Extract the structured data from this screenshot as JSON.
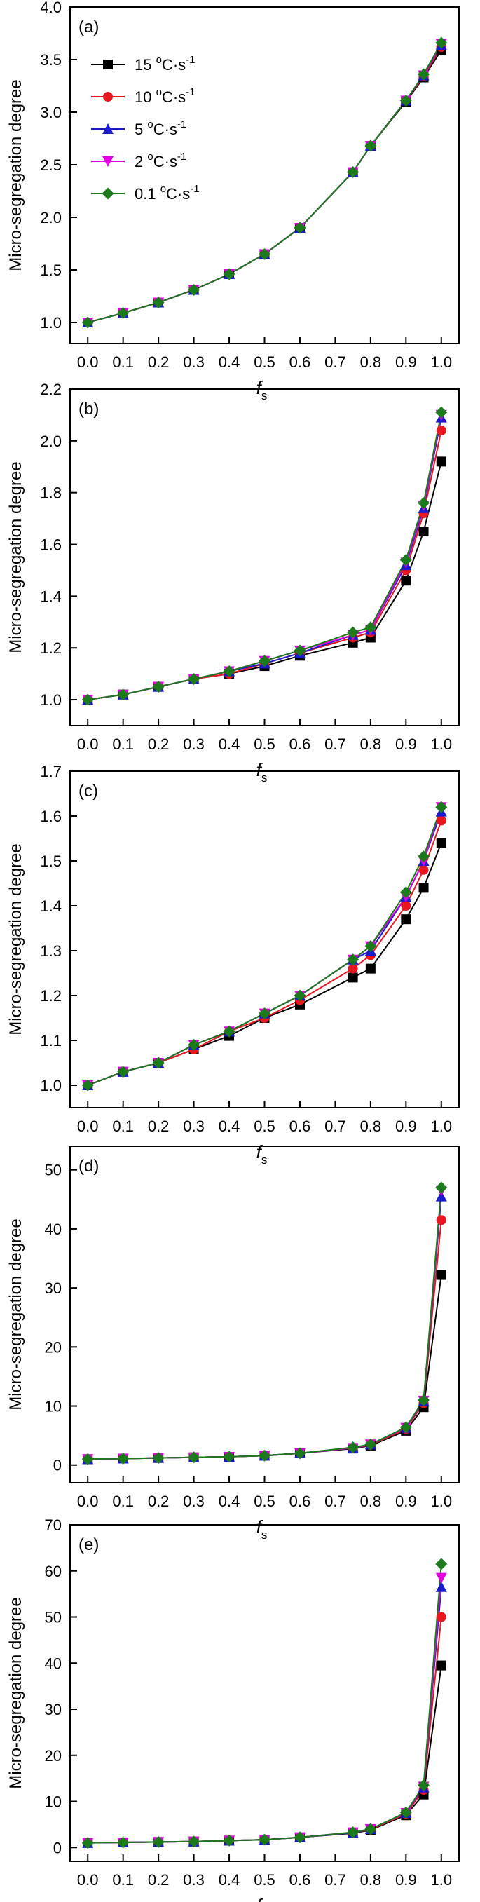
{
  "figure": {
    "ylabel": "Micro-segregation degree",
    "xlabel_main": "f",
    "xlabel_sub": "s"
  },
  "legend": {
    "placement": "top-left",
    "entries": [
      {
        "number": "15",
        "unit_deg": "o",
        "unit_main": "C·s",
        "unit_exp": "-1",
        "color": "#000000",
        "marker": "square"
      },
      {
        "number": "10",
        "unit_deg": "o",
        "unit_main": "C·s",
        "unit_exp": "-1",
        "color": "#e8171f",
        "marker": "circle"
      },
      {
        "number": "5",
        "unit_deg": "o",
        "unit_main": "C·s",
        "unit_exp": "-1",
        "color": "#1a1acd",
        "marker": "triangle-up"
      },
      {
        "number": "2",
        "unit_deg": "o",
        "unit_main": "C·s",
        "unit_exp": "-1",
        "color": "#e000e0",
        "marker": "triangle-down"
      },
      {
        "number": "0.1",
        "unit_deg": "o",
        "unit_main": "C·s",
        "unit_exp": "-1",
        "color": "#1b7a1b",
        "marker": "diamond"
      }
    ]
  },
  "chart_data": [
    {
      "type": "line",
      "panel_label": "(a)",
      "ylim": [
        0.8,
        4.0
      ],
      "y_ticks": [
        "1.0",
        "1.5",
        "2.0",
        "2.5",
        "3.0",
        "3.5",
        "4.0"
      ],
      "xlim": [
        -0.05,
        1.05
      ],
      "x_ticks": [
        "0.0",
        "0.1",
        "0.2",
        "0.3",
        "0.4",
        "0.5",
        "0.6",
        "0.7",
        "0.8",
        "0.9",
        "1.0"
      ],
      "x": [
        0,
        0.1,
        0.2,
        0.3,
        0.4,
        0.5,
        0.6,
        0.75,
        0.8,
        0.9,
        0.95,
        1.0
      ],
      "series": [
        {
          "name": "15 °C·s-1",
          "values": [
            1.0,
            1.09,
            1.19,
            1.31,
            1.46,
            1.65,
            1.9,
            2.43,
            2.68,
            3.1,
            3.33,
            3.59
          ]
        },
        {
          "name": "10 °C·s-1",
          "values": [
            1.0,
            1.09,
            1.19,
            1.31,
            1.46,
            1.65,
            1.9,
            2.43,
            2.68,
            3.11,
            3.34,
            3.62
          ]
        },
        {
          "name": "5 °C·s-1",
          "values": [
            1.0,
            1.09,
            1.19,
            1.31,
            1.46,
            1.65,
            1.9,
            2.43,
            2.68,
            3.11,
            3.35,
            3.64
          ]
        },
        {
          "name": "2 °C·s-1",
          "values": [
            1.0,
            1.09,
            1.19,
            1.31,
            1.46,
            1.65,
            1.9,
            2.43,
            2.68,
            3.11,
            3.35,
            3.65
          ]
        },
        {
          "name": "0.1 °C·s-1",
          "values": [
            1.0,
            1.09,
            1.19,
            1.31,
            1.46,
            1.65,
            1.9,
            2.43,
            2.68,
            3.11,
            3.36,
            3.66
          ]
        }
      ]
    },
    {
      "type": "line",
      "panel_label": "(b)",
      "ylim": [
        0.9,
        2.2
      ],
      "y_ticks": [
        "1.0",
        "1.2",
        "1.4",
        "1.6",
        "1.8",
        "2.0",
        "2.2"
      ],
      "xlim": [
        -0.05,
        1.05
      ],
      "x_ticks": [
        "0.0",
        "0.1",
        "0.2",
        "0.3",
        "0.4",
        "0.5",
        "0.6",
        "0.7",
        "0.8",
        "0.9",
        "1.0"
      ],
      "x": [
        0,
        0.1,
        0.2,
        0.3,
        0.4,
        0.5,
        0.6,
        0.75,
        0.8,
        0.9,
        0.95,
        1.0
      ],
      "series": [
        {
          "name": "15 °C·s-1",
          "values": [
            1.0,
            1.02,
            1.05,
            1.08,
            1.1,
            1.13,
            1.17,
            1.22,
            1.24,
            1.46,
            1.65,
            1.92
          ]
        },
        {
          "name": "10 °C·s-1",
          "values": [
            1.0,
            1.02,
            1.05,
            1.08,
            1.1,
            1.14,
            1.18,
            1.24,
            1.26,
            1.5,
            1.72,
            2.04
          ]
        },
        {
          "name": "5 °C·s-1",
          "values": [
            1.0,
            1.02,
            1.05,
            1.08,
            1.11,
            1.14,
            1.18,
            1.25,
            1.27,
            1.52,
            1.74,
            2.09
          ]
        },
        {
          "name": "2 °C·s-1",
          "values": [
            1.0,
            1.02,
            1.05,
            1.08,
            1.11,
            1.15,
            1.19,
            1.25,
            1.27,
            1.53,
            1.75,
            2.1
          ]
        },
        {
          "name": "0.1 °C·s-1",
          "values": [
            1.0,
            1.02,
            1.05,
            1.08,
            1.11,
            1.15,
            1.19,
            1.26,
            1.28,
            1.54,
            1.76,
            2.11
          ]
        }
      ]
    },
    {
      "type": "line",
      "panel_label": "(c)",
      "ylim": [
        0.95,
        1.7
      ],
      "y_ticks": [
        "1.0",
        "1.1",
        "1.2",
        "1.3",
        "1.4",
        "1.5",
        "1.6",
        "1.7"
      ],
      "xlim": [
        -0.05,
        1.05
      ],
      "x_ticks": [
        "0.0",
        "0.1",
        "0.2",
        "0.3",
        "0.4",
        "0.5",
        "0.6",
        "0.7",
        "0.8",
        "0.9",
        "1.0"
      ],
      "x": [
        0,
        0.1,
        0.2,
        0.3,
        0.4,
        0.5,
        0.6,
        0.75,
        0.8,
        0.9,
        0.95,
        1.0
      ],
      "series": [
        {
          "name": "15 °C·s-1",
          "values": [
            1.0,
            1.03,
            1.05,
            1.08,
            1.11,
            1.15,
            1.18,
            1.24,
            1.26,
            1.37,
            1.44,
            1.54
          ]
        },
        {
          "name": "10 °C·s-1",
          "values": [
            1.0,
            1.03,
            1.05,
            1.08,
            1.12,
            1.15,
            1.19,
            1.26,
            1.29,
            1.4,
            1.48,
            1.59
          ]
        },
        {
          "name": "5 °C·s-1",
          "values": [
            1.0,
            1.03,
            1.05,
            1.09,
            1.12,
            1.16,
            1.2,
            1.28,
            1.3,
            1.42,
            1.5,
            1.61
          ]
        },
        {
          "name": "2 °C·s-1",
          "values": [
            1.0,
            1.03,
            1.05,
            1.09,
            1.12,
            1.16,
            1.2,
            1.28,
            1.31,
            1.42,
            1.5,
            1.62
          ]
        },
        {
          "name": "0.1 °C·s-1",
          "values": [
            1.0,
            1.03,
            1.05,
            1.09,
            1.12,
            1.16,
            1.2,
            1.28,
            1.31,
            1.43,
            1.51,
            1.62
          ]
        }
      ]
    },
    {
      "type": "line",
      "panel_label": "(d)",
      "ylim": [
        -3,
        54
      ],
      "y_ticks": [
        "0",
        "10",
        "20",
        "30",
        "40",
        "50"
      ],
      "xlim": [
        -0.05,
        1.05
      ],
      "x_ticks": [
        "0.0",
        "0.1",
        "0.2",
        "0.3",
        "0.4",
        "0.5",
        "0.6",
        "0.7",
        "0.8",
        "0.9",
        "1.0"
      ],
      "x": [
        0,
        0.1,
        0.2,
        0.3,
        0.4,
        0.5,
        0.6,
        0.75,
        0.8,
        0.9,
        0.95,
        1.0
      ],
      "series": [
        {
          "name": "15 °C·s-1",
          "values": [
            1.0,
            1.1,
            1.2,
            1.3,
            1.4,
            1.6,
            2.0,
            2.8,
            3.3,
            5.8,
            9.8,
            32.2
          ]
        },
        {
          "name": "10 °C·s-1",
          "values": [
            1.0,
            1.1,
            1.2,
            1.3,
            1.4,
            1.6,
            2.0,
            2.9,
            3.4,
            6.1,
            10.5,
            41.5
          ]
        },
        {
          "name": "5 °C·s-1",
          "values": [
            1.0,
            1.1,
            1.2,
            1.3,
            1.4,
            1.6,
            2.0,
            2.9,
            3.5,
            6.3,
            10.8,
            45.5
          ]
        },
        {
          "name": "2 °C·s-1",
          "values": [
            1.0,
            1.1,
            1.2,
            1.3,
            1.4,
            1.6,
            2.0,
            2.9,
            3.5,
            6.3,
            10.9,
            46.5
          ]
        },
        {
          "name": "0.1 °C·s-1",
          "values": [
            1.0,
            1.1,
            1.2,
            1.3,
            1.4,
            1.6,
            2.0,
            3.0,
            3.5,
            6.4,
            11.0,
            47.0
          ]
        }
      ]
    },
    {
      "type": "line",
      "panel_label": "(e)",
      "ylim": [
        -3,
        70
      ],
      "y_ticks": [
        "0",
        "10",
        "20",
        "30",
        "40",
        "50",
        "60",
        "70"
      ],
      "xlim": [
        -0.05,
        1.05
      ],
      "x_ticks": [
        "0.0",
        "0.1",
        "0.2",
        "0.3",
        "0.4",
        "0.5",
        "0.6",
        "0.7",
        "0.8",
        "0.9",
        "1.0"
      ],
      "x": [
        0,
        0.1,
        0.2,
        0.3,
        0.4,
        0.5,
        0.6,
        0.75,
        0.8,
        0.9,
        0.95,
        1.0
      ],
      "series": [
        {
          "name": "15 °C·s-1",
          "values": [
            1.0,
            1.1,
            1.2,
            1.3,
            1.5,
            1.7,
            2.2,
            3.1,
            3.8,
            7.0,
            11.5,
            39.5
          ]
        },
        {
          "name": "10 °C·s-1",
          "values": [
            1.0,
            1.1,
            1.2,
            1.3,
            1.5,
            1.7,
            2.2,
            3.2,
            3.9,
            7.3,
            12.5,
            50.0
          ]
        },
        {
          "name": "5 °C·s-1",
          "values": [
            1.0,
            1.1,
            1.2,
            1.3,
            1.5,
            1.7,
            2.2,
            3.2,
            4.0,
            7.5,
            13.0,
            56.5
          ]
        },
        {
          "name": "2 °C·s-1",
          "values": [
            1.0,
            1.1,
            1.2,
            1.3,
            1.5,
            1.7,
            2.2,
            3.3,
            4.0,
            7.5,
            13.2,
            58.5
          ]
        },
        {
          "name": "0.1 °C·s-1",
          "values": [
            1.0,
            1.1,
            1.2,
            1.3,
            1.5,
            1.7,
            2.2,
            3.3,
            4.0,
            7.6,
            13.5,
            61.5
          ]
        }
      ]
    }
  ]
}
